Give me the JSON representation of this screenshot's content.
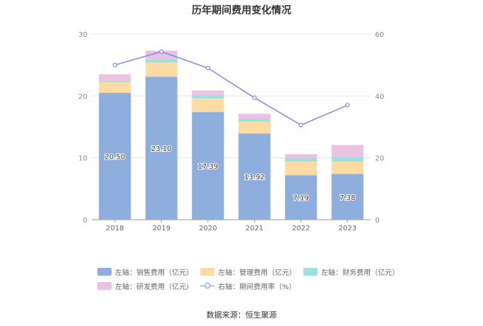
{
  "chart_data": {
    "type": "bar",
    "title": "历年期间费用变化情况",
    "categories": [
      "2018",
      "2019",
      "2020",
      "2021",
      "2022",
      "2023"
    ],
    "left_axis": {
      "ticks": [
        "0",
        "10",
        "20",
        "30"
      ],
      "ylim": [
        0,
        30
      ]
    },
    "right_axis": {
      "ticks": [
        "0",
        "20",
        "40",
        "60"
      ],
      "ylim": [
        0,
        60
      ]
    },
    "series": [
      {
        "name": "左轴：销售费用（亿元）",
        "axis": "left",
        "color": "#8eaedd",
        "values": [
          20.5,
          23.1,
          17.39,
          13.92,
          7.19,
          7.38
        ],
        "labels": [
          "20.50",
          "23.10",
          "17.39",
          "13.92",
          "7.19",
          "7.38"
        ]
      },
      {
        "name": "左轴：管理费用（亿元）",
        "axis": "left",
        "color": "#fcdba5",
        "values": [
          1.7,
          2.3,
          2.2,
          1.9,
          2.2,
          2.0
        ]
      },
      {
        "name": "左轴：财务费用（亿元）",
        "axis": "left",
        "color": "#9ee0df",
        "values": [
          0.2,
          0.5,
          0.5,
          0.5,
          0.6,
          0.8
        ]
      },
      {
        "name": "左轴：研发费用（亿元）",
        "axis": "left",
        "color": "#ebc3e2",
        "values": [
          1.1,
          1.4,
          0.8,
          0.8,
          0.6,
          1.9
        ]
      },
      {
        "name": "右轴：期间费用率（%）",
        "axis": "right",
        "type": "line",
        "color": "#8087ec",
        "values": [
          50.0,
          54.3,
          49.0,
          39.4,
          30.6,
          37.0
        ]
      }
    ]
  },
  "source": "数据来源：恒生聚源"
}
